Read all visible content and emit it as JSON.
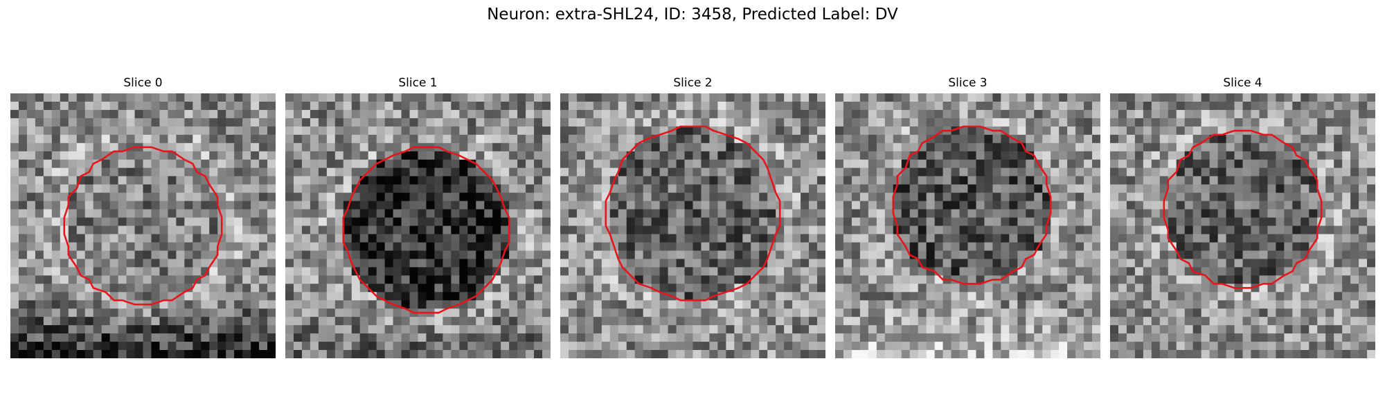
{
  "figure": {
    "title": "Neuron: extra-SHL24, ID: 3458, Predicted Label: DV"
  },
  "colors": {
    "outline": "#e8141c",
    "background": "#ffffff"
  },
  "panels": [
    {
      "title": "Slice 0",
      "seed": 11,
      "darkness_inside": 0.05,
      "bottom_dark": 0.45
    },
    {
      "title": "Slice 1",
      "seed": 23,
      "darkness_inside": 0.35,
      "bottom_dark": 0.15
    },
    {
      "title": "Slice 2",
      "seed": 37,
      "darkness_inside": 0.15,
      "bottom_dark": 0.0
    },
    {
      "title": "Slice 3",
      "seed": 41,
      "darkness_inside": 0.2,
      "bottom_dark": -0.2
    },
    {
      "title": "Slice 4",
      "seed": 53,
      "darkness_inside": 0.15,
      "bottom_dark": 0.0
    }
  ]
}
